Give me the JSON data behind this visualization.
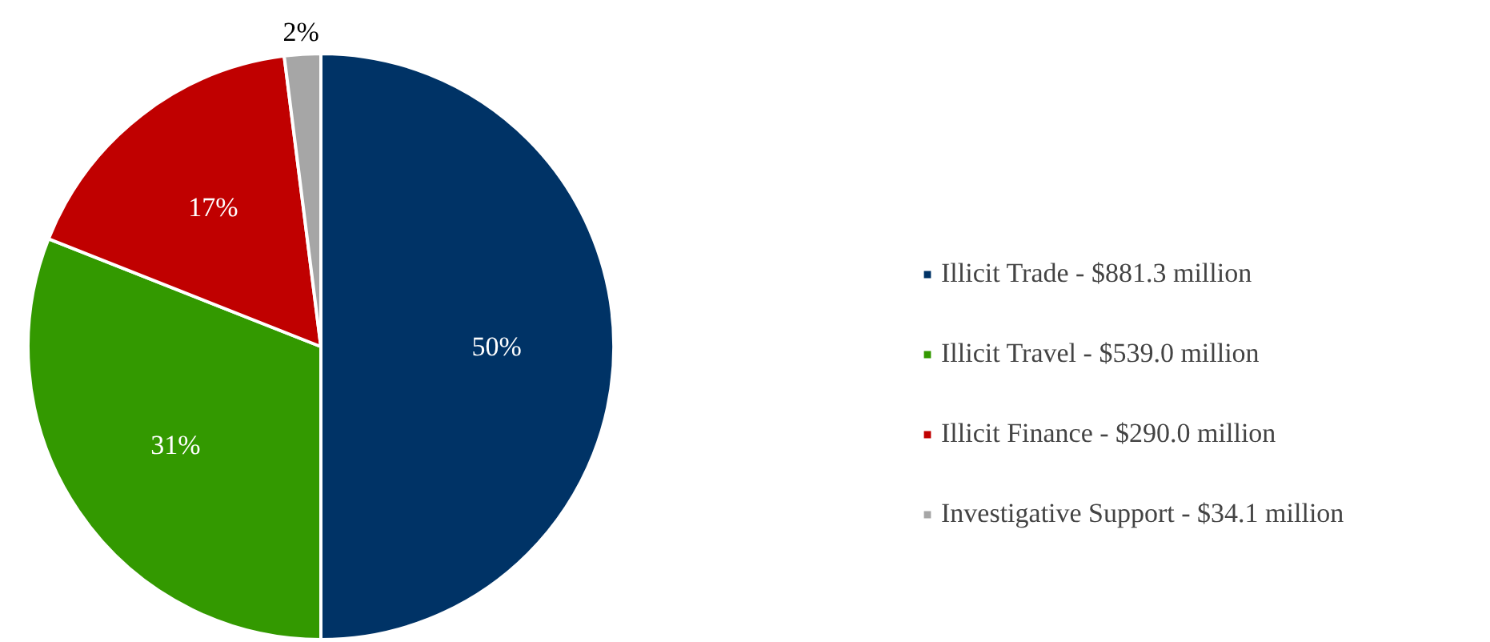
{
  "chart_data": {
    "type": "pie",
    "categories": [
      "Illicit Trade - $881.3 million",
      "Illicit Travel - $539.0 million",
      "Illicit Finance - $290.0 million",
      "Investigative Support - $34.1 million"
    ],
    "values": [
      50,
      31,
      17,
      2
    ],
    "colors": [
      "#003366",
      "#339900",
      "#c00000",
      "#a6a6a6"
    ],
    "value_labels": [
      "50%",
      "31%",
      "17%",
      "2%"
    ],
    "legend": "right"
  }
}
